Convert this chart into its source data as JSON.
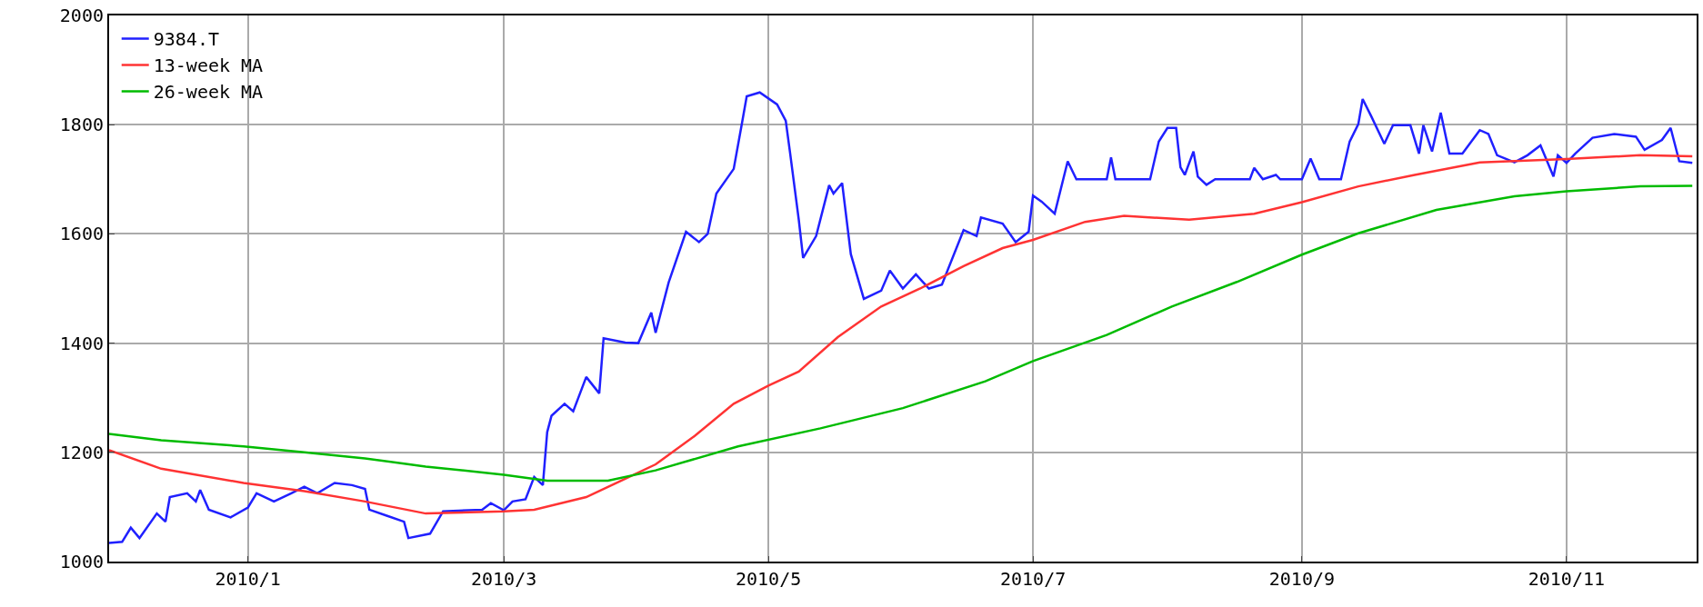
{
  "chart_data": {
    "type": "line",
    "xlim": [
      "2009-11-30",
      "2010-12-01"
    ],
    "ylim": [
      1000,
      2000
    ],
    "xticks": [
      {
        "value": "2010-01-01",
        "label": "2010/1"
      },
      {
        "value": "2010-03-01",
        "label": "2010/3"
      },
      {
        "value": "2010-05-01",
        "label": "2010/5"
      },
      {
        "value": "2010-07-01",
        "label": "2010/7"
      },
      {
        "value": "2010-09-01",
        "label": "2010/9"
      },
      {
        "value": "2010-11-01",
        "label": "2010/11"
      }
    ],
    "yticks": [
      1000,
      1200,
      1400,
      1600,
      1800,
      2000
    ],
    "grid": true,
    "legend": "top left",
    "series": [
      {
        "name": "9384.T",
        "color": "#2020ff",
        "x": [
          "2009-11-30",
          "2009-12-03",
          "2009-12-05",
          "2009-12-07",
          "2009-12-11",
          "2009-12-13",
          "2009-12-14",
          "2009-12-18",
          "2009-12-20",
          "2009-12-21",
          "2009-12-23",
          "2009-12-28",
          "2010-01-01",
          "2010-01-03",
          "2010-01-07",
          "2010-01-11",
          "2010-01-14",
          "2010-01-17",
          "2010-01-21",
          "2010-01-25",
          "2010-01-28",
          "2010-01-29",
          "2010-02-02",
          "2010-02-06",
          "2010-02-07",
          "2010-02-12",
          "2010-02-15",
          "2010-02-24",
          "2010-02-26",
          "2010-03-01",
          "2010-03-03",
          "2010-03-06",
          "2010-03-08",
          "2010-03-10",
          "2010-03-11",
          "2010-03-12",
          "2010-03-15",
          "2010-03-17",
          "2010-03-20",
          "2010-03-23",
          "2010-03-24",
          "2010-03-29",
          "2010-04-01",
          "2010-04-04",
          "2010-04-05",
          "2010-04-08",
          "2010-04-12",
          "2010-04-15",
          "2010-04-17",
          "2010-04-19",
          "2010-04-23",
          "2010-04-25",
          "2010-04-26",
          "2010-04-29",
          "2010-05-03",
          "2010-05-05",
          "2010-05-06",
          "2010-05-08",
          "2010-05-09",
          "2010-05-12",
          "2010-05-15",
          "2010-05-16",
          "2010-05-18",
          "2010-05-20",
          "2010-05-23",
          "2010-05-27",
          "2010-05-29",
          "2010-06-01",
          "2010-06-04",
          "2010-06-07",
          "2010-06-10",
          "2010-06-15",
          "2010-06-18",
          "2010-06-19",
          "2010-06-24",
          "2010-06-27",
          "2010-06-30",
          "2010-07-01",
          "2010-07-03",
          "2010-07-06",
          "2010-07-09",
          "2010-07-11",
          "2010-07-18",
          "2010-07-19",
          "2010-07-20",
          "2010-07-28",
          "2010-07-30",
          "2010-08-01",
          "2010-08-03",
          "2010-08-04",
          "2010-08-05",
          "2010-08-07",
          "2010-08-08",
          "2010-08-10",
          "2010-08-12",
          "2010-08-20",
          "2010-08-21",
          "2010-08-23",
          "2010-08-26",
          "2010-08-27",
          "2010-09-01",
          "2010-09-03",
          "2010-09-05",
          "2010-09-10",
          "2010-09-12",
          "2010-09-14",
          "2010-09-15",
          "2010-09-17",
          "2010-09-20",
          "2010-09-22",
          "2010-09-26",
          "2010-09-28",
          "2010-09-29",
          "2010-10-01",
          "2010-10-03",
          "2010-10-05",
          "2010-10-08",
          "2010-10-12",
          "2010-10-14",
          "2010-10-16",
          "2010-10-20",
          "2010-10-23",
          "2010-10-26",
          "2010-10-29",
          "2010-10-30",
          "2010-11-01",
          "2010-11-03",
          "2010-11-07",
          "2010-11-12",
          "2010-11-17",
          "2010-11-19",
          "2010-11-23",
          "2010-11-25",
          "2010-11-27",
          "2010-11-30"
        ],
        "values": [
          1034,
          1036,
          1062,
          1043,
          1088,
          1073,
          1118,
          1125,
          1110,
          1131,
          1095,
          1081,
          1099,
          1125,
          1110,
          1125,
          1137,
          1125,
          1144,
          1140,
          1133,
          1095,
          1084,
          1073,
          1043,
          1051,
          1092,
          1095,
          1107,
          1094,
          1110,
          1114,
          1155,
          1140,
          1237,
          1267,
          1289,
          1275,
          1338,
          1308,
          1409,
          1401,
          1400,
          1456,
          1419,
          1511,
          1604,
          1585,
          1600,
          1674,
          1719,
          1807,
          1852,
          1859,
          1837,
          1807,
          1748,
          1626,
          1556,
          1596,
          1689,
          1674,
          1693,
          1563,
          1481,
          1496,
          1533,
          1500,
          1526,
          1500,
          1507,
          1607,
          1596,
          1630,
          1619,
          1585,
          1604,
          1670,
          1659,
          1637,
          1733,
          1700,
          1700,
          1740,
          1700,
          1700,
          1769,
          1794,
          1794,
          1722,
          1708,
          1751,
          1705,
          1690,
          1700,
          1700,
          1721,
          1700,
          1708,
          1700,
          1700,
          1738,
          1700,
          1700,
          1769,
          1801,
          1847,
          1815,
          1765,
          1799,
          1799,
          1747,
          1799,
          1751,
          1822,
          1747,
          1747,
          1790,
          1783,
          1744,
          1731,
          1744,
          1762,
          1705,
          1744,
          1730,
          1747,
          1776,
          1783,
          1778,
          1754,
          1772,
          1794,
          1733,
          1730
        ]
      },
      {
        "name": "13-week MA",
        "color": "#ff3333",
        "x": [
          "2009-11-30",
          "2009-12-12",
          "2009-12-31",
          "2010-01-14",
          "2010-01-28",
          "2010-02-11",
          "2010-03-01",
          "2010-03-08",
          "2010-03-20",
          "2010-03-28",
          "2010-04-05",
          "2010-04-14",
          "2010-04-23",
          "2010-05-01",
          "2010-05-08",
          "2010-05-17",
          "2010-05-27",
          "2010-06-05",
          "2010-06-15",
          "2010-06-24",
          "2010-07-01",
          "2010-07-13",
          "2010-07-22",
          "2010-08-06",
          "2010-08-21",
          "2010-09-01",
          "2010-09-14",
          "2010-09-27",
          "2010-10-12",
          "2010-11-01",
          "2010-11-18",
          "2010-11-30"
        ],
        "values": [
          1204,
          1170,
          1144,
          1129,
          1110,
          1088,
          1092,
          1095,
          1118,
          1148,
          1178,
          1230,
          1289,
          1322,
          1348,
          1411,
          1467,
          1500,
          1541,
          1574,
          1589,
          1622,
          1633,
          1626,
          1637,
          1658,
          1687,
          1708,
          1731,
          1737,
          1744,
          1742
        ]
      },
      {
        "name": "26-week MA",
        "color": "#00bb00",
        "x": [
          "2009-11-30",
          "2009-12-12",
          "2009-12-31",
          "2010-01-14",
          "2010-01-28",
          "2010-02-11",
          "2010-03-01",
          "2010-03-11",
          "2010-03-25",
          "2010-04-05",
          "2010-04-24",
          "2010-05-13",
          "2010-06-01",
          "2010-06-20",
          "2010-07-01",
          "2010-07-18",
          "2010-08-02",
          "2010-08-17",
          "2010-09-01",
          "2010-09-14",
          "2010-10-02",
          "2010-10-20",
          "2010-11-01",
          "2010-11-18",
          "2010-11-30"
        ],
        "values": [
          1234,
          1222,
          1211,
          1200,
          1189,
          1174,
          1159,
          1148,
          1148,
          1167,
          1211,
          1244,
          1281,
          1330,
          1367,
          1415,
          1467,
          1512,
          1562,
          1601,
          1644,
          1669,
          1678,
          1687,
          1688
        ]
      }
    ]
  }
}
